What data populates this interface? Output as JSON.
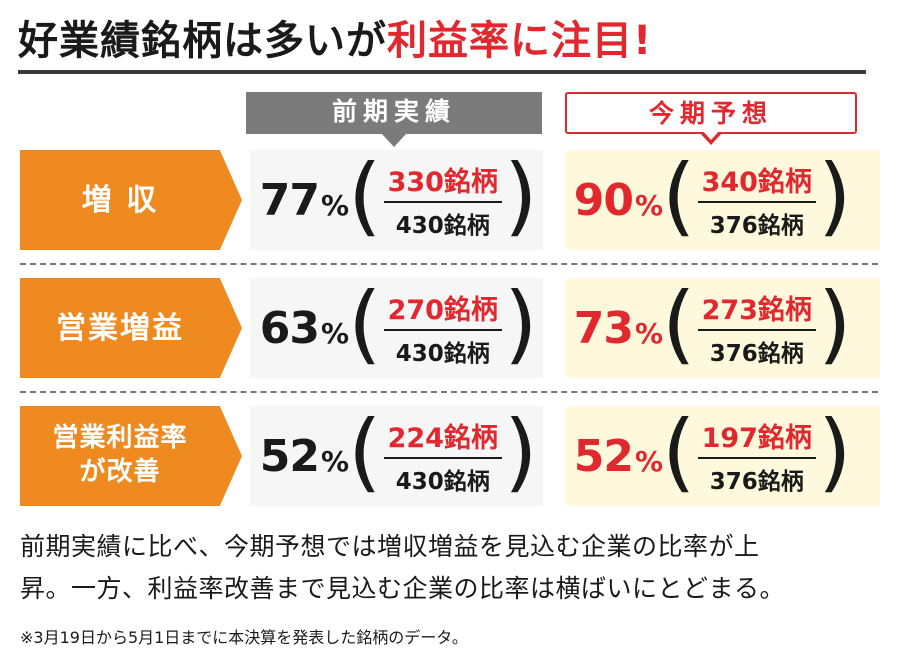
{
  "title": {
    "main": "好業績銘柄は多いが",
    "highlight": "利益率に注目!"
  },
  "chart_data": {
    "type": "table",
    "columns": [
      "前期実績",
      "今期予想"
    ],
    "rows": [
      {
        "category": "増 収",
        "prev": {
          "percent": "77",
          "numerator": "330銘柄",
          "denominator": "430銘柄"
        },
        "curr": {
          "percent": "90",
          "numerator": "340銘柄",
          "denominator": "376銘柄"
        }
      },
      {
        "category": "営業増益",
        "prev": {
          "percent": "63",
          "numerator": "270銘柄",
          "denominator": "430銘柄"
        },
        "curr": {
          "percent": "73",
          "numerator": "273銘柄",
          "denominator": "376銘柄"
        }
      },
      {
        "category": "営業利益率\nが改善",
        "prev": {
          "percent": "52",
          "numerator": "224銘柄",
          "denominator": "430銘柄"
        },
        "curr": {
          "percent": "52",
          "numerator": "197銘柄",
          "denominator": "376銘柄"
        }
      }
    ],
    "percent_unit": "%"
  },
  "caption": {
    "line1": "前期実績に比べ、今期予想では増収増益を見込む企業の比率が上",
    "line2": "昇。一方、利益率改善まで見込む企業の比率は横ばいにとどまる。"
  },
  "note": "※3月19日から5月1日までに本決算を発表した銘柄のデータ。",
  "colors": {
    "accent": "#e0282e",
    "category": "#ee8a1f",
    "prev_header": "#7b7b7b",
    "curr_bg": "#fef8dc"
  }
}
